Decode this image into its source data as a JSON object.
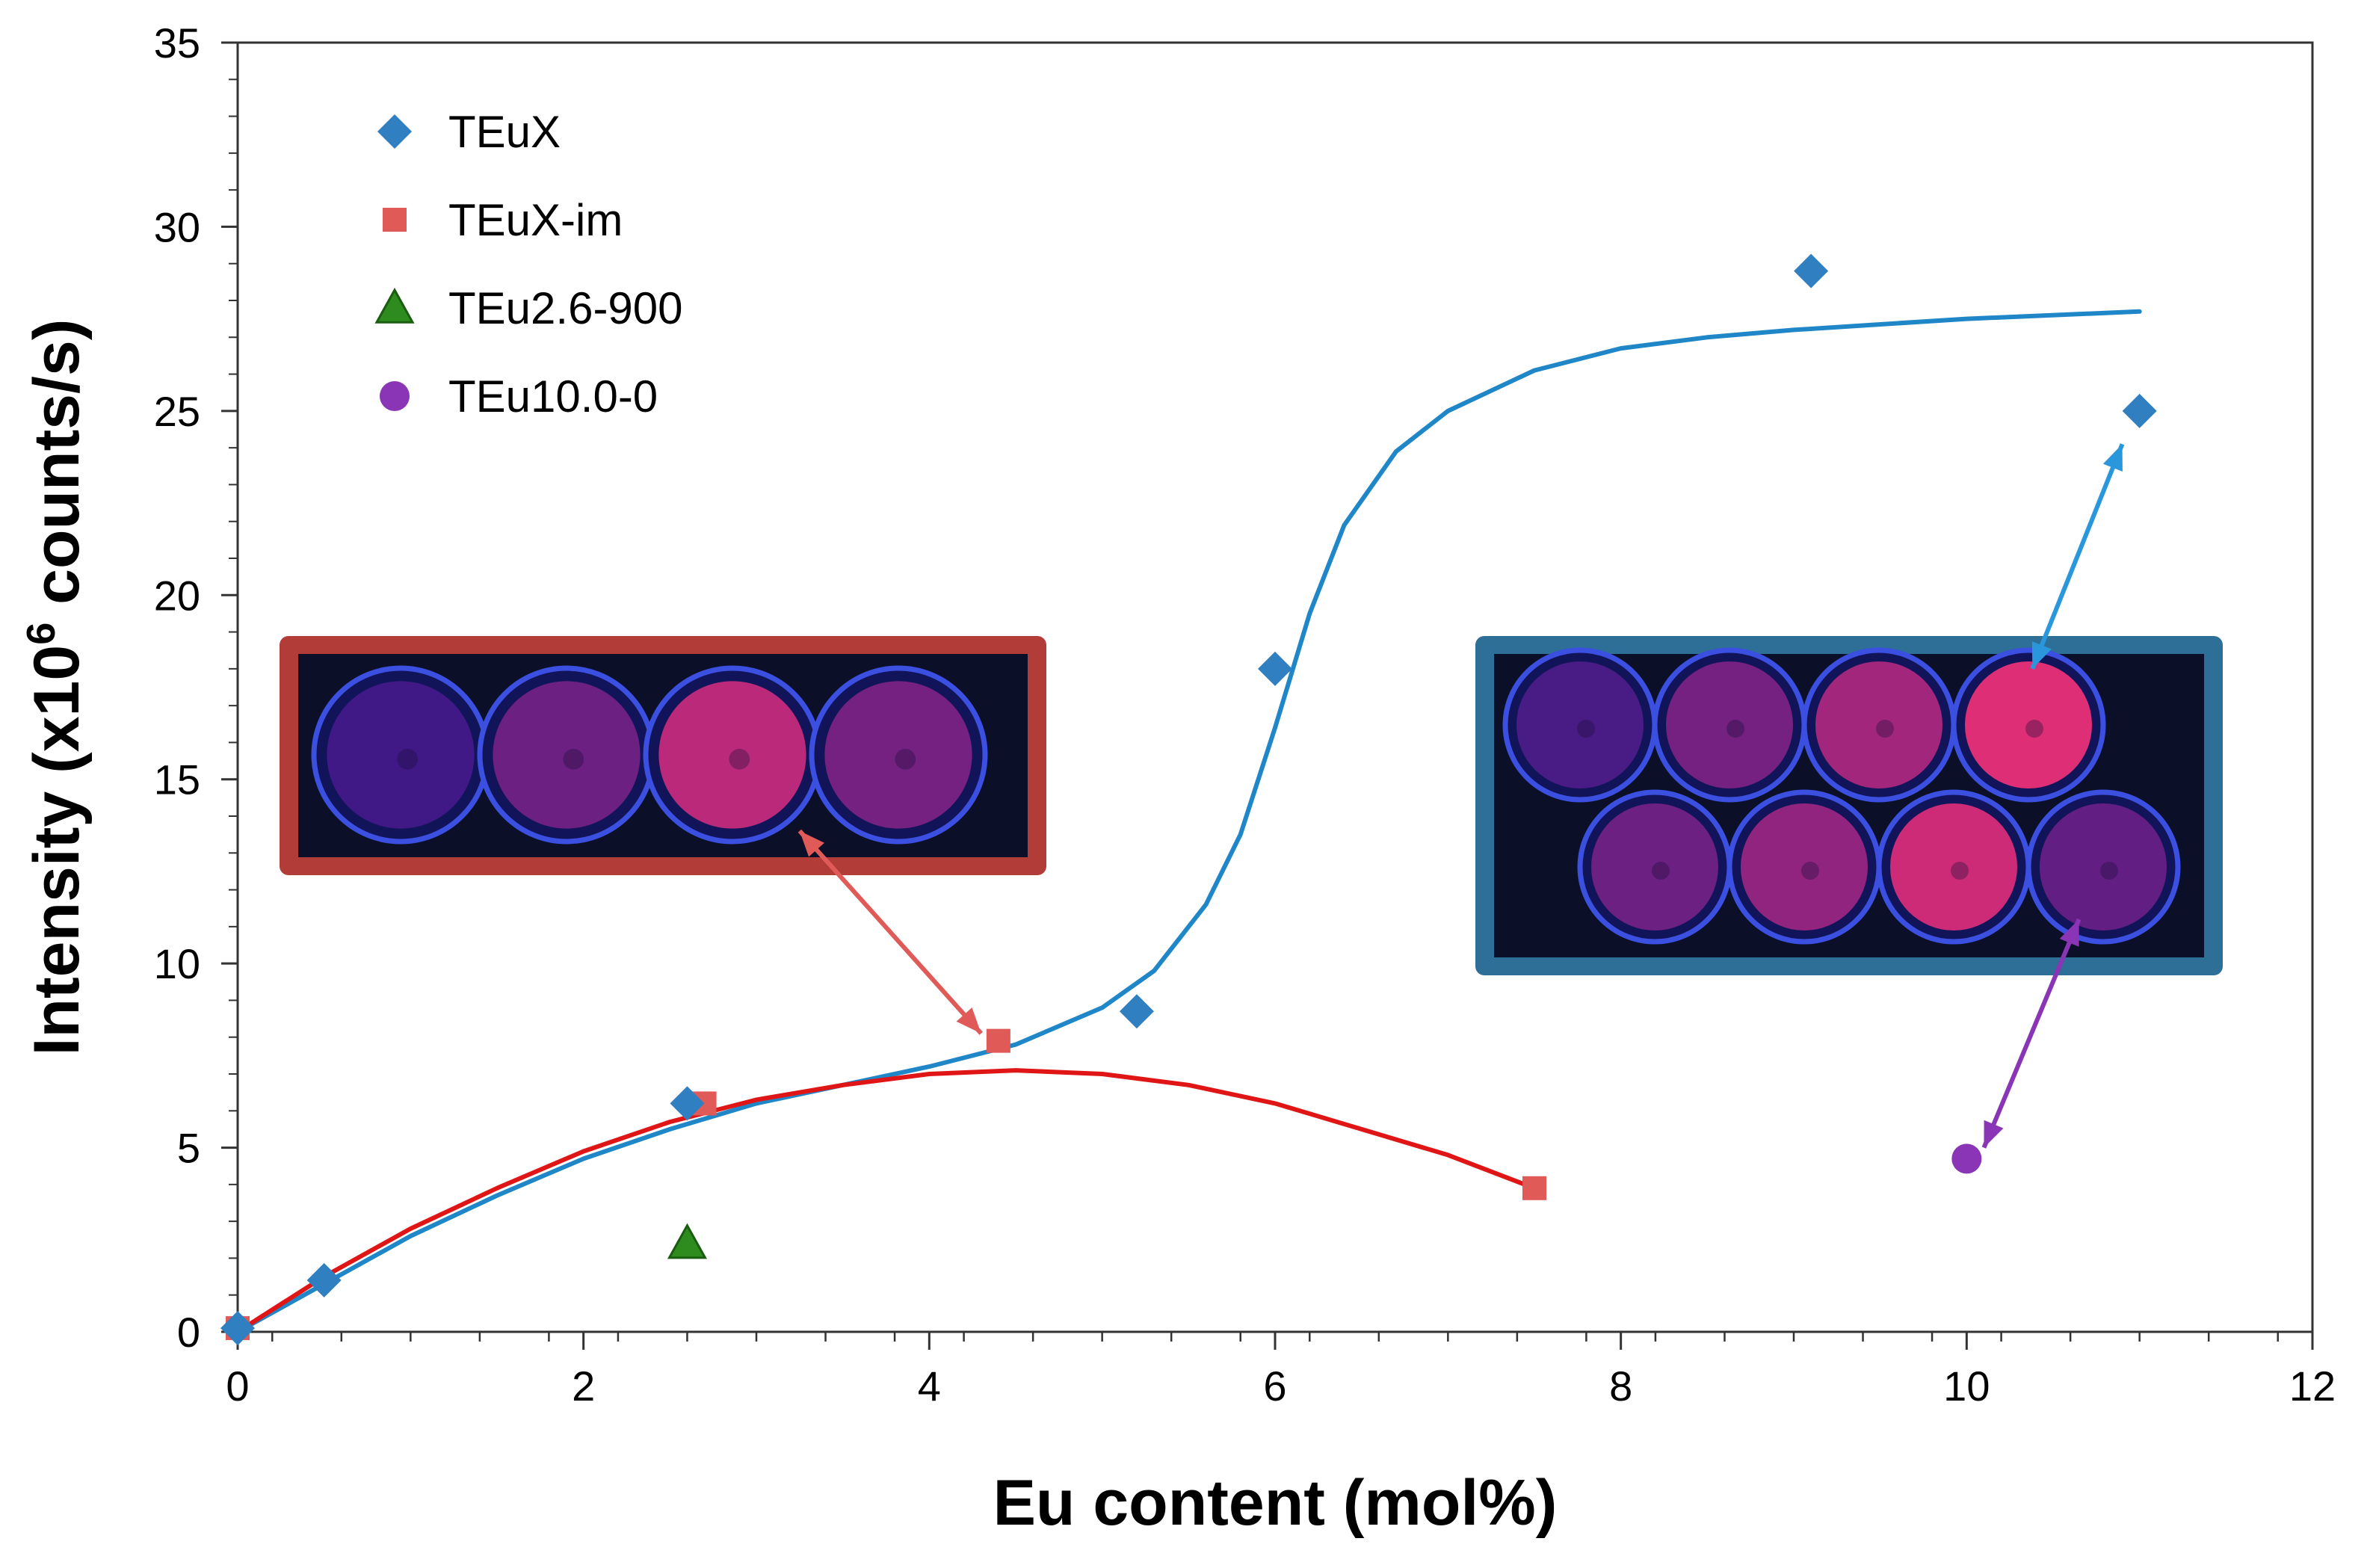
{
  "chart_data": {
    "type": "scatter",
    "xlabel": "Eu content (mol%)",
    "ylabel_main": "Intensity (x10",
    "ylabel_sup": "6",
    "ylabel_tail": " counts/s)",
    "xlim": [
      0,
      12
    ],
    "ylim": [
      0,
      35
    ],
    "x_ticks": [
      0,
      2,
      4,
      6,
      8,
      10,
      12
    ],
    "y_ticks": [
      0,
      5,
      10,
      15,
      20,
      25,
      30,
      35
    ],
    "x_tick_labels": [
      "0",
      "2",
      "4",
      "6",
      "8",
      "10",
      "12"
    ],
    "y_tick_labels": [
      "0",
      "5",
      "10",
      "15",
      "20",
      "25",
      "30",
      "35"
    ],
    "grid": false,
    "legend_position": "top-left",
    "series": [
      {
        "name": "TEuX",
        "marker": "diamond",
        "color": "#2f7fc1",
        "points": [
          [
            0,
            0.1
          ],
          [
            0.5,
            1.4
          ],
          [
            2.6,
            6.2
          ],
          [
            5.2,
            8.7
          ],
          [
            6.0,
            18.0
          ],
          [
            9.1,
            28.8
          ],
          [
            11.0,
            25.0
          ]
        ]
      },
      {
        "name": "TEuX-im",
        "marker": "square",
        "color": "#e05a58",
        "points": [
          [
            0,
            0.1
          ],
          [
            2.7,
            6.2
          ],
          [
            4.4,
            7.9
          ],
          [
            7.5,
            3.9
          ]
        ]
      },
      {
        "name": "TEu2.6-900",
        "marker": "triangle",
        "color": "#2e8b1e",
        "points": [
          [
            2.6,
            2.4
          ]
        ]
      },
      {
        "name": "TEu10.0-0",
        "marker": "circle",
        "color": "#8a35b5",
        "points": [
          [
            10.0,
            4.7
          ]
        ]
      }
    ],
    "fit_lines": [
      {
        "color": "#1f86c8",
        "points": [
          [
            0,
            0
          ],
          [
            0.5,
            1.3
          ],
          [
            1,
            2.6
          ],
          [
            1.5,
            3.7
          ],
          [
            2,
            4.7
          ],
          [
            2.5,
            5.5
          ],
          [
            3,
            6.2
          ],
          [
            3.5,
            6.7
          ],
          [
            4,
            7.2
          ],
          [
            4.5,
            7.8
          ],
          [
            5,
            8.8
          ],
          [
            5.3,
            9.8
          ],
          [
            5.6,
            11.6
          ],
          [
            5.8,
            13.5
          ],
          [
            6.0,
            16.4
          ],
          [
            6.2,
            19.5
          ],
          [
            6.4,
            21.9
          ],
          [
            6.7,
            23.9
          ],
          [
            7,
            25.0
          ],
          [
            7.5,
            26.1
          ],
          [
            8,
            26.7
          ],
          [
            8.5,
            27.0
          ],
          [
            9,
            27.2
          ],
          [
            10,
            27.5
          ],
          [
            11,
            27.7
          ]
        ]
      },
      {
        "color": "#e01616",
        "points": [
          [
            0,
            0
          ],
          [
            0.5,
            1.5
          ],
          [
            1,
            2.8
          ],
          [
            1.5,
            3.9
          ],
          [
            2,
            4.9
          ],
          [
            2.5,
            5.7
          ],
          [
            3,
            6.3
          ],
          [
            3.5,
            6.7
          ],
          [
            4,
            7.0
          ],
          [
            4.5,
            7.1
          ],
          [
            5,
            7.0
          ],
          [
            5.5,
            6.7
          ],
          [
            6,
            6.2
          ],
          [
            6.5,
            5.5
          ],
          [
            7,
            4.8
          ],
          [
            7.5,
            3.9
          ]
        ]
      }
    ],
    "annotation_arrows": [
      {
        "color": "#e05a58",
        "from": [
          3.25,
          13.6
        ],
        "to": [
          4.3,
          8.1
        ]
      },
      {
        "color": "#2a96db",
        "from": [
          10.38,
          18.0
        ],
        "to": [
          10.9,
          24.1
        ]
      },
      {
        "color": "#8a35b5",
        "from": [
          10.1,
          5.0
        ],
        "to": [
          10.65,
          11.2
        ]
      }
    ],
    "inset_photos": [
      {
        "frame_color": "#b23c38",
        "dish_rows": [
          [
            0.05,
            0.3,
            0.75,
            0.35
          ]
        ]
      },
      {
        "frame_color": "#2e6f97",
        "dish_rows": [
          [
            0.1,
            0.35,
            0.6,
            0.95
          ],
          [
            0.3,
            0.5,
            0.85,
            0.25
          ]
        ]
      }
    ]
  }
}
